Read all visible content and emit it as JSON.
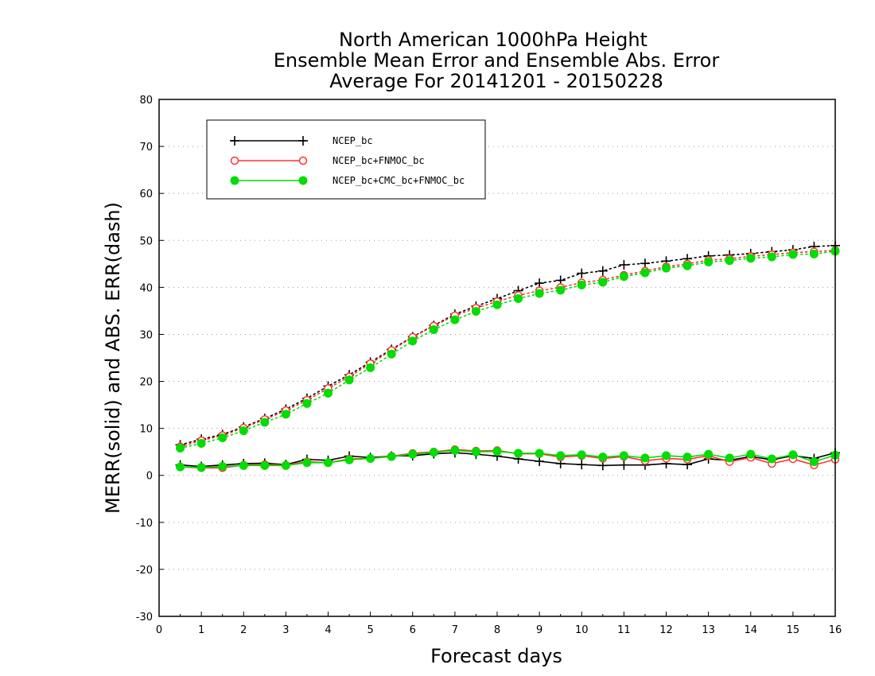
{
  "chart_data": {
    "type": "line",
    "title_lines": [
      "North American 1000hPa Height",
      "Ensemble Mean Error and Ensemble Abs. Error",
      "Average For 20141201 - 20150228"
    ],
    "xlabel": "Forecast days",
    "ylabel": "MERR(solid) and ABS. ERR(dash)",
    "xlim": [
      0,
      16
    ],
    "ylim": [
      -30,
      80
    ],
    "xticks": [
      0,
      1,
      2,
      3,
      4,
      5,
      6,
      7,
      8,
      9,
      10,
      11,
      12,
      13,
      14,
      15,
      16
    ],
    "yticks": [
      -30,
      -20,
      -10,
      0,
      10,
      20,
      30,
      40,
      50,
      60,
      70,
      80
    ],
    "grid": "horizontal-dotted",
    "legend_position": "top-left",
    "x": [
      0.5,
      1,
      1.5,
      2,
      2.5,
      3,
      3.5,
      4,
      4.5,
      5,
      5.5,
      6,
      6.5,
      7,
      7.5,
      8,
      8.5,
      9,
      9.5,
      10,
      10.5,
      11,
      11.5,
      12,
      12.5,
      13,
      13.5,
      14,
      14.5,
      15,
      15.5,
      16
    ],
    "series": [
      {
        "name": "NCEP_bc",
        "color": "#000000",
        "marker": "plus",
        "merr": [
          2.2,
          1.9,
          2.2,
          2.5,
          2.6,
          2.3,
          3.4,
          3.2,
          4.1,
          3.8,
          4.1,
          4.2,
          4.6,
          4.8,
          4.5,
          4.1,
          3.5,
          3.0,
          2.5,
          2.3,
          2.1,
          2.2,
          2.2,
          2.5,
          2.3,
          3.5,
          3.2,
          4.0,
          3.3,
          4.2,
          3.6,
          4.8
        ],
        "abs_err": [
          6.5,
          7.7,
          8.7,
          10.3,
          12.1,
          14.1,
          16.4,
          19.0,
          21.4,
          24.1,
          26.8,
          29.5,
          31.9,
          34.3,
          36.0,
          37.6,
          39.3,
          40.9,
          41.5,
          43.0,
          43.5,
          44.8,
          45.1,
          45.6,
          46.1,
          46.7,
          46.9,
          47.2,
          47.6,
          48.0,
          48.7,
          48.9
        ]
      },
      {
        "name": "NCEP_bc+FNMOC_bc",
        "color": "#ff3333",
        "marker": "open-circle",
        "merr": [
          1.8,
          1.6,
          1.6,
          2.2,
          2.3,
          2.2,
          2.9,
          2.7,
          3.5,
          3.6,
          4.1,
          4.7,
          5.0,
          5.5,
          5.2,
          5.3,
          4.6,
          4.6,
          3.9,
          4.2,
          3.6,
          4.0,
          3.1,
          3.6,
          3.4,
          4.2,
          2.9,
          3.8,
          2.5,
          3.5,
          2.2,
          3.4
        ],
        "abs_err": [
          6.1,
          7.4,
          8.5,
          10.1,
          11.9,
          13.8,
          16.0,
          18.5,
          21.0,
          23.8,
          26.6,
          29.4,
          31.8,
          34.0,
          35.6,
          37.0,
          38.3,
          39.3,
          40.0,
          41.0,
          41.6,
          42.6,
          43.5,
          44.4,
          45.0,
          45.8,
          46.1,
          46.6,
          47.0,
          47.4,
          47.6,
          47.9
        ]
      },
      {
        "name": "NCEP_bc+CMC_bc+FNMOC_bc",
        "color": "#00dd00",
        "marker": "filled-circle",
        "merr": [
          1.8,
          1.7,
          1.9,
          2.1,
          2.1,
          2.1,
          2.7,
          2.7,
          3.3,
          3.6,
          4.0,
          4.5,
          4.9,
          5.3,
          5.0,
          5.1,
          4.7,
          4.7,
          4.2,
          4.4,
          3.9,
          4.2,
          3.7,
          4.2,
          3.9,
          4.5,
          3.7,
          4.5,
          3.5,
          4.4,
          2.9,
          4.3
        ],
        "abs_err": [
          5.8,
          6.8,
          8.0,
          9.5,
          11.3,
          13.0,
          15.3,
          17.5,
          20.3,
          22.9,
          25.8,
          28.6,
          31.0,
          33.1,
          34.9,
          36.3,
          37.6,
          38.7,
          39.4,
          40.5,
          41.1,
          42.3,
          43.1,
          44.1,
          44.6,
          45.4,
          45.7,
          46.2,
          46.5,
          47.0,
          47.1,
          47.7
        ]
      }
    ]
  }
}
